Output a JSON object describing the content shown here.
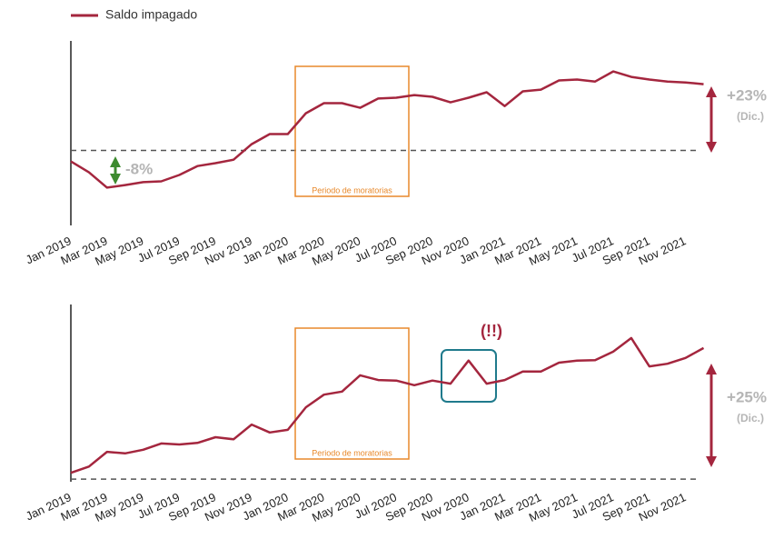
{
  "legend": {
    "name": "Saldo impagado",
    "color": "#a4263e"
  },
  "chart_data": [
    {
      "type": "line",
      "categories": [
        "Jan 2019",
        null,
        "Mar 2019",
        null,
        "May 2019",
        null,
        "Jul 2019",
        null,
        "Sep 2019",
        null,
        "Nov 2019",
        null,
        "Jan 2020",
        null,
        "Mar 2020",
        null,
        "May 2020",
        null,
        "Jul 2020",
        null,
        "Sep 2020",
        null,
        "Nov 2020",
        null,
        "Jan 2021",
        null,
        "Mar 2021",
        null,
        "May 2021",
        null,
        "Jul 2021",
        null,
        "Sep 2021",
        null,
        "Nov 2021",
        null
      ],
      "series": [
        {
          "color": "#a4263e",
          "values": [
            96.2,
            92.4,
            87.1,
            88.0,
            89.0,
            89.3,
            91.5,
            94.6,
            95.6,
            96.8,
            102.2,
            105.7,
            105.7,
            112.9,
            116.4,
            116.4,
            114.8,
            118.0,
            118.3,
            119.2,
            118.6,
            116.7,
            118.3,
            120.2,
            115.4,
            120.5,
            121.1,
            124.3,
            124.6,
            123.9,
            127.4,
            125.5,
            124.6,
            123.9,
            123.6,
            123.0
          ]
        }
      ],
      "ylim": [
        74,
        138
      ],
      "baseline": 100,
      "highlight": {
        "label": "Periodo de moratorias",
        "color": "#e8892b"
      },
      "annotations": {
        "change": "+23%",
        "period": "(Dic.)",
        "dip": "-8%"
      }
    },
    {
      "type": "line",
      "categories": [
        "Jan 2019",
        null,
        "Mar 2019",
        null,
        "May 2019",
        null,
        "Jul 2019",
        null,
        "Sep 2019",
        null,
        "Nov 2019",
        null,
        "Jan 2020",
        null,
        "Mar 2020",
        null,
        "May 2020",
        null,
        "Jul 2020",
        null,
        "Sep 2020",
        null,
        "Nov 2020",
        null,
        "Jan 2021",
        null,
        "Mar 2021",
        null,
        "May 2021",
        null,
        "Jul 2021",
        null,
        "Sep 2021",
        null,
        "Nov 2021",
        null
      ],
      "series": [
        {
          "color": "#a4263e",
          "values": [
            101.2,
            102.4,
            105.2,
            104.9,
            105.6,
            106.8,
            106.6,
            106.9,
            108.0,
            107.6,
            110.4,
            108.9,
            109.4,
            113.7,
            116.1,
            116.7,
            119.8,
            118.9,
            118.8,
            117.9,
            118.8,
            118.2,
            122.6,
            118.2,
            118.9,
            120.5,
            120.5,
            122.2,
            122.6,
            122.7,
            124.3,
            126.9,
            121.5,
            122.0,
            123.1,
            125.0
          ]
        }
      ],
      "ylim": [
        99.5,
        133.3
      ],
      "baseline": 100,
      "highlight": {
        "label": "Periodo de moratorias",
        "color": "#e8892b"
      },
      "annotations": {
        "change": "+25%",
        "period": "(Dic.)",
        "spike": "(!!)"
      }
    }
  ]
}
